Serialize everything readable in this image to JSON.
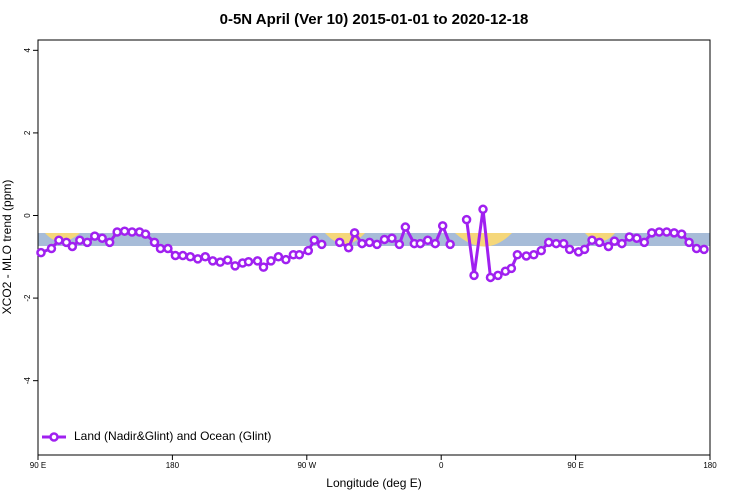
{
  "chart_data": {
    "type": "line",
    "title": "0-5N April (Ver 10)   2015-01-01 to 2020-12-18",
    "x_label": "Longitude (deg E)",
    "y_label": "XCO2 - MLO trend (ppm)",
    "xlim": [
      90,
      540
    ],
    "ylim": [
      -5.8,
      4.25
    ],
    "xticks": [
      {
        "value": 90,
        "label": "90 E"
      },
      180,
      {
        "value": 270,
        "label": "90 W"
      },
      {
        "value": 360,
        "label": "0"
      },
      {
        "value": 450,
        "label": "90 E"
      },
      {
        "value": 540,
        "label": "180"
      }
    ],
    "yticks": [
      -4,
      -2,
      0,
      2,
      4
    ],
    "legend": "bottom-left",
    "series": [
      {
        "name": "Land (Nadir&Glint) and Ocean (Glint)",
        "color": "#a020f0",
        "x": [
          92,
          99,
          104,
          109,
          113,
          118,
          123,
          128,
          133,
          138,
          143,
          148,
          153,
          158,
          162,
          168,
          172,
          177,
          182,
          187,
          192,
          197,
          202,
          207,
          212,
          217,
          222,
          227,
          231,
          237,
          241,
          246,
          251,
          256,
          261,
          265,
          271,
          275,
          280,
          285,
          292,
          298,
          302,
          307,
          312,
          317,
          322,
          327,
          332,
          336,
          342,
          346,
          351,
          356,
          361,
          366,
          371,
          377,
          382,
          388,
          393,
          398,
          403,
          407,
          411,
          417,
          422,
          427,
          432,
          437,
          442,
          446,
          452,
          456,
          461,
          466,
          472,
          476,
          481,
          486,
          491,
          496,
          501,
          506,
          511,
          516,
          521,
          526,
          531,
          536
        ],
        "values": [
          -0.9,
          -0.8,
          -0.6,
          -0.65,
          -0.75,
          -0.6,
          -0.65,
          -0.5,
          -0.55,
          -0.65,
          -0.4,
          -0.38,
          -0.4,
          -0.4,
          -0.45,
          -0.65,
          -0.8,
          -0.8,
          -0.97,
          -0.97,
          -1.0,
          -1.05,
          -1.0,
          -1.1,
          -1.13,
          -1.08,
          -1.22,
          -1.15,
          -1.12,
          -1.1,
          -1.25,
          -1.1,
          -1.0,
          -1.07,
          -0.95,
          -0.95,
          -0.85,
          -0.6,
          -0.7,
          null,
          -0.65,
          -0.78,
          -0.42,
          -0.68,
          -0.65,
          -0.7,
          -0.58,
          -0.55,
          -0.7,
          -0.28,
          -0.68,
          -0.68,
          -0.6,
          -0.68,
          -0.25,
          -0.7,
          null,
          -0.1,
          -1.45,
          0.15,
          -1.5,
          -1.45,
          -1.35,
          -1.28,
          -0.95,
          -0.98,
          -0.95,
          -0.85,
          -0.65,
          -0.68,
          -0.68,
          -0.82,
          -0.88,
          -0.82,
          -0.6,
          -0.65,
          -0.75,
          -0.62,
          -0.68,
          -0.52,
          -0.55,
          -0.65,
          -0.42,
          -0.4,
          -0.4,
          -0.42,
          -0.45,
          -0.65,
          -0.8,
          -0.82
        ]
      }
    ]
  }
}
